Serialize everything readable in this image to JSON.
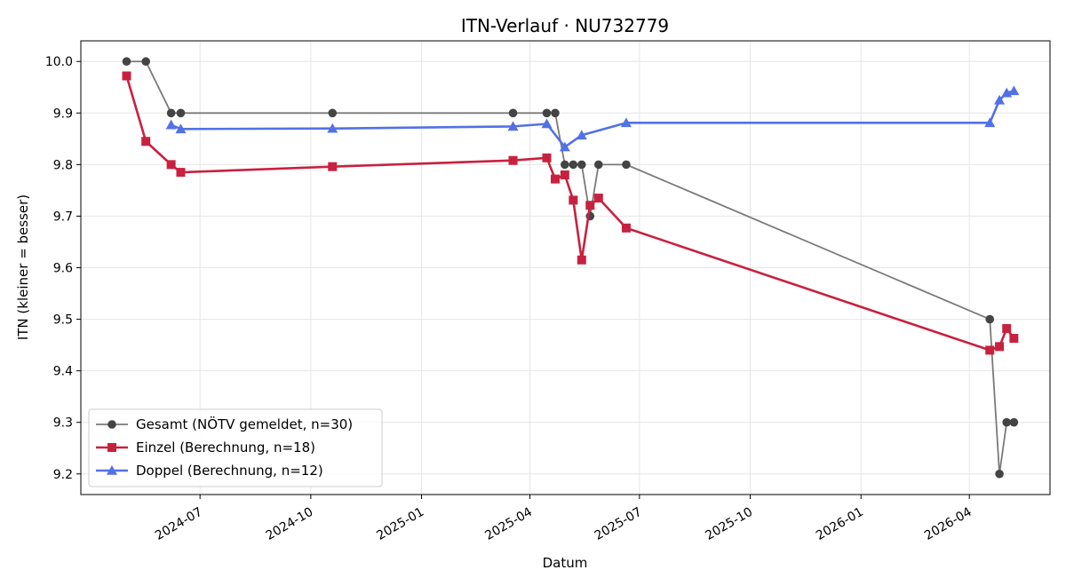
{
  "chart_data": {
    "type": "line",
    "title": "ITN-Verlauf · NU732779",
    "xlabel": "Datum",
    "ylabel": "ITN  (kleiner = besser)",
    "x_axis_type": "date",
    "xlim": [
      "2024-03-24",
      "2026-06-07"
    ],
    "ylim": [
      9.16,
      10.04
    ],
    "x_ticks": [
      {
        "date": "2024-07-01",
        "label": "2024-07"
      },
      {
        "date": "2024-10-01",
        "label": "2024-10"
      },
      {
        "date": "2025-01-01",
        "label": "2025-01"
      },
      {
        "date": "2025-04-01",
        "label": "2025-04"
      },
      {
        "date": "2025-07-01",
        "label": "2025-07"
      },
      {
        "date": "2025-10-01",
        "label": "2025-10"
      },
      {
        "date": "2026-01-01",
        "label": "2026-01"
      },
      {
        "date": "2026-04-01",
        "label": "2026-04"
      }
    ],
    "y_ticks": [
      {
        "value": 9.2,
        "label": "9.2"
      },
      {
        "value": 9.3,
        "label": "9.3"
      },
      {
        "value": 9.4,
        "label": "9.4"
      },
      {
        "value": 9.5,
        "label": "9.5"
      },
      {
        "value": 9.6,
        "label": "9.6"
      },
      {
        "value": 9.7,
        "label": "9.7"
      },
      {
        "value": 9.8,
        "label": "9.8"
      },
      {
        "value": 9.9,
        "label": "9.9"
      },
      {
        "value": 10.0,
        "label": "10.0"
      }
    ],
    "grid": true,
    "legend_position": "lower-left",
    "series": [
      {
        "name": "Gesamt (NÖTV gemeldet, n=30)",
        "color": "#7a7a7a",
        "marker_color": "#444444",
        "marker": "circle",
        "x": [
          "2024-05-01",
          "2024-05-17",
          "2024-06-07",
          "2024-06-15",
          "2024-10-19",
          "2025-03-18",
          "2025-04-15",
          "2025-04-22",
          "2025-04-30",
          "2025-05-07",
          "2025-05-14",
          "2025-05-21",
          "2025-05-28",
          "2025-06-20",
          "2026-04-18",
          "2026-04-26",
          "2026-05-02",
          "2026-05-08"
        ],
        "y": [
          10.0,
          10.0,
          9.9,
          9.9,
          9.9,
          9.9,
          9.9,
          9.9,
          9.8,
          9.8,
          9.8,
          9.7,
          9.8,
          9.8,
          9.5,
          9.2,
          9.3,
          9.3
        ]
      },
      {
        "name": "Einzel (Berechnung, n=18)",
        "color": "#c8213f",
        "marker_color": "#c8213f",
        "marker": "square",
        "x": [
          "2024-05-01",
          "2024-05-17",
          "2024-06-07",
          "2024-06-15",
          "2024-10-19",
          "2025-03-18",
          "2025-04-15",
          "2025-04-22",
          "2025-04-30",
          "2025-05-07",
          "2025-05-14",
          "2025-05-21",
          "2025-05-28",
          "2025-06-20",
          "2026-04-18",
          "2026-04-26",
          "2026-05-02",
          "2026-05-08"
        ],
        "y": [
          9.972,
          9.845,
          9.8,
          9.785,
          9.796,
          9.808,
          9.813,
          9.772,
          9.78,
          9.731,
          9.615,
          9.721,
          9.735,
          9.677,
          9.44,
          9.447,
          9.482,
          9.463
        ]
      },
      {
        "name": "Doppel (Berechnung, n=12)",
        "color": "#5271e6",
        "marker_color": "#5271e6",
        "marker": "triangle",
        "x": [
          "2024-06-07",
          "2024-06-15",
          "2024-10-19",
          "2025-03-18",
          "2025-04-15",
          "2025-04-30",
          "2025-05-14",
          "2025-06-20",
          "2026-04-18",
          "2026-04-26",
          "2026-05-02",
          "2026-05-08"
        ],
        "y": [
          9.877,
          9.869,
          9.87,
          9.874,
          9.879,
          9.834,
          9.857,
          9.881,
          9.881,
          9.925,
          9.939,
          9.943
        ]
      }
    ]
  }
}
